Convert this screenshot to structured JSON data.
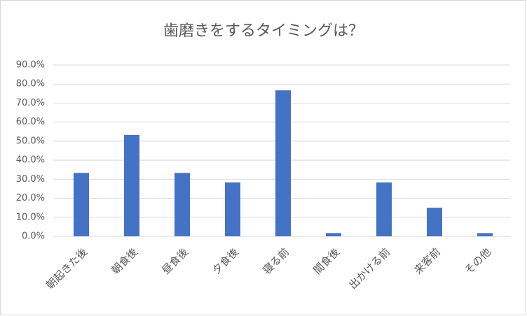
{
  "chart_data": {
    "type": "bar",
    "title": "歯磨きをするタイミングは？",
    "categories": [
      "朝起きた後",
      "朝食後",
      "昼食後",
      "夕食後",
      "寝る前",
      "間食後",
      "出かける前",
      "来客前",
      "その他"
    ],
    "values": [
      33.3,
      53.3,
      33.3,
      28.3,
      76.7,
      1.7,
      28.3,
      15.0,
      1.7
    ],
    "color": "#4472c4",
    "ylim": [
      0,
      90
    ],
    "yticks": [
      {
        "value": 0,
        "label": "0.0%"
      },
      {
        "value": 10,
        "label": "10.0%"
      },
      {
        "value": 20,
        "label": "20.0%"
      },
      {
        "value": 30,
        "label": "30.0%"
      },
      {
        "value": 40,
        "label": "40.0%"
      },
      {
        "value": 50,
        "label": "50.0%"
      },
      {
        "value": 60,
        "label": "60.0%"
      },
      {
        "value": 70,
        "label": "70.0%"
      },
      {
        "value": 80,
        "label": "80.0%"
      },
      {
        "value": 90,
        "label": "90.0%"
      }
    ],
    "grid": true
  }
}
